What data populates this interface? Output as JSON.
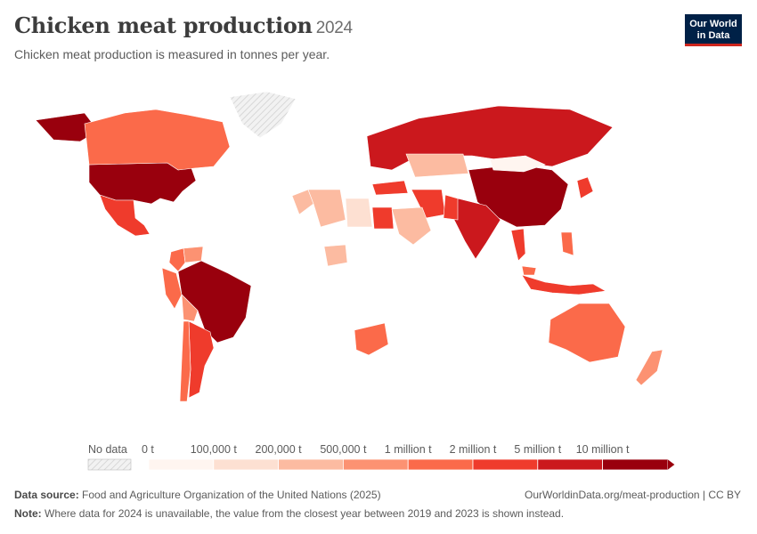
{
  "header": {
    "title": "Chicken meat production",
    "year": "2024",
    "subtitle": "Chicken meat production is measured in tonnes per year.",
    "logo_line1": "Our World",
    "logo_line2": "in Data"
  },
  "colors": {
    "scale": [
      "#fff5f0",
      "#fde0d2",
      "#fcbba1",
      "#fc9272",
      "#fb6a4a",
      "#ef3b2c",
      "#cb181d",
      "#99000d"
    ],
    "no_data": "#e8e8e8",
    "border": "#ffffff"
  },
  "chart_data": {
    "type": "map",
    "metric": "Chicken meat production (tonnes per year)",
    "legend": {
      "no_data_label": "No data",
      "bins": [
        "0 t",
        "100,000 t",
        "200,000 t",
        "500,000 t",
        "1 million t",
        "2 million t",
        "5 million t",
        "10 million t"
      ]
    },
    "regions": [
      {
        "name": "United States",
        "bin": 7
      },
      {
        "name": "Brazil",
        "bin": 7
      },
      {
        "name": "China",
        "bin": 7
      },
      {
        "name": "Russia",
        "bin": 6
      },
      {
        "name": "India",
        "bin": 6
      },
      {
        "name": "Mexico",
        "bin": 5
      },
      {
        "name": "Argentina",
        "bin": 5
      },
      {
        "name": "Indonesia",
        "bin": 5
      },
      {
        "name": "Thailand",
        "bin": 5
      },
      {
        "name": "Japan",
        "bin": 5
      },
      {
        "name": "Turkey",
        "bin": 5
      },
      {
        "name": "Iran",
        "bin": 5
      },
      {
        "name": "Egypt",
        "bin": 5
      },
      {
        "name": "Pakistan",
        "bin": 5
      },
      {
        "name": "Canada",
        "bin": 4
      },
      {
        "name": "Australia",
        "bin": 4
      },
      {
        "name": "South Africa",
        "bin": 4
      },
      {
        "name": "Colombia",
        "bin": 4
      },
      {
        "name": "Peru",
        "bin": 4
      },
      {
        "name": "Malaysia",
        "bin": 4
      },
      {
        "name": "Philippines",
        "bin": 4
      },
      {
        "name": "Saudi Arabia",
        "bin": 2
      },
      {
        "name": "Kazakhstan",
        "bin": 2
      },
      {
        "name": "Morocco",
        "bin": 2
      },
      {
        "name": "New Zealand",
        "bin": 3
      },
      {
        "name": "Mongolia",
        "bin": 0
      },
      {
        "name": "Libya",
        "bin": 1
      },
      {
        "name": "Algeria",
        "bin": 2
      },
      {
        "name": "Nigeria",
        "bin": 2
      },
      {
        "name": "Venezuela",
        "bin": 3
      },
      {
        "name": "Bolivia",
        "bin": 3
      },
      {
        "name": "Chile",
        "bin": 4
      },
      {
        "name": "Greenland",
        "bin": -1
      }
    ]
  },
  "footer": {
    "source_label": "Data source:",
    "source_text": "Food and Agriculture Organization of the United Nations (2025)",
    "url": "OurWorldinData.org/meat-production | CC BY",
    "note_label": "Note:",
    "note_text": "Where data for 2024 is unavailable, the value from the closest year between 2019 and 2023 is shown instead."
  }
}
